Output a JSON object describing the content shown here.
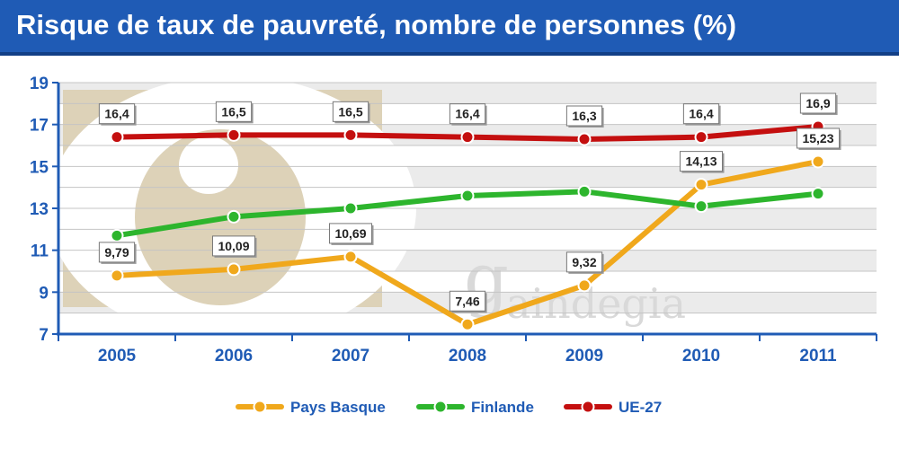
{
  "title": "Risque de taux de pauvreté, nombre de personnes (%)",
  "watermark": {
    "letter": "g",
    "word": "aindegia"
  },
  "chart_data": {
    "type": "line",
    "title": "Risque de taux de pauvreté, nombre de personnes (%)",
    "xlabel": "",
    "ylabel": "",
    "categories": [
      "2005",
      "2006",
      "2007",
      "2008",
      "2009",
      "2010",
      "2011"
    ],
    "yticks": [
      "7",
      "9",
      "11",
      "13",
      "15",
      "17",
      "19"
    ],
    "ylim": [
      7,
      19
    ],
    "grid": true,
    "legend_position": "bottom",
    "series": [
      {
        "name": "Pays Basque",
        "color": "#f0a81c",
        "values": [
          9.79,
          10.09,
          10.69,
          7.46,
          9.32,
          14.13,
          15.23
        ],
        "labels": [
          "9,79",
          "10,09",
          "10,69",
          "7,46",
          "9,32",
          "14,13",
          "15,23"
        ]
      },
      {
        "name": "Finlande",
        "color": "#2db52d",
        "values": [
          11.7,
          12.6,
          13.0,
          13.6,
          13.8,
          13.1,
          13.7
        ],
        "labels": []
      },
      {
        "name": "UE-27",
        "color": "#c40f0f",
        "values": [
          16.4,
          16.5,
          16.5,
          16.4,
          16.3,
          16.4,
          16.9
        ],
        "labels": [
          "16,4",
          "16,5",
          "16,5",
          "16,4",
          "16,3",
          "16,4",
          "16,9"
        ]
      }
    ]
  }
}
